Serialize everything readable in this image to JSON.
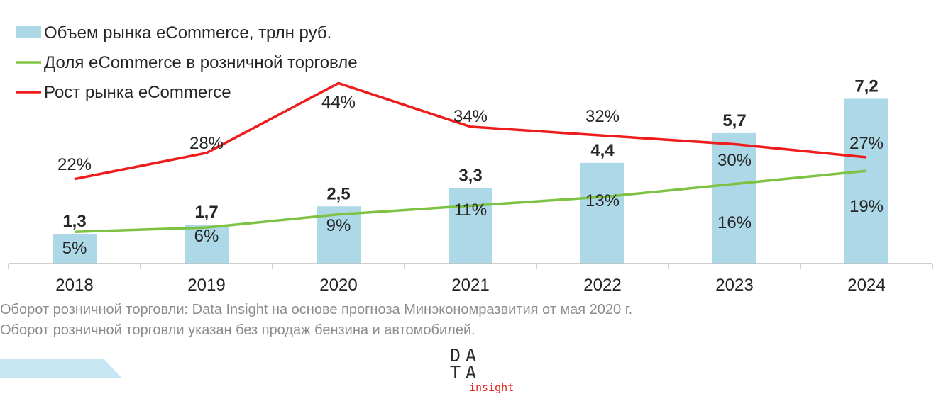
{
  "chart_data": {
    "type": "bar",
    "categories": [
      "2018",
      "2019",
      "2020",
      "2021",
      "2022",
      "2023",
      "2024"
    ],
    "series": [
      {
        "name": "Объем рынка eCommerce, трлн руб.",
        "type": "bar",
        "values": [
          1.3,
          1.7,
          2.5,
          3.3,
          4.4,
          5.7,
          7.2
        ],
        "labels": [
          "1,3",
          "1,7",
          "2,5",
          "3,3",
          "4,4",
          "5,7",
          "7,2"
        ],
        "color": "#add8e8"
      },
      {
        "name": "Доля eCommerce в розничной торговле",
        "type": "line",
        "values": [
          5,
          6,
          9,
          11,
          13,
          16,
          19
        ],
        "labels": [
          "5%",
          "6%",
          "9%",
          "11%",
          "13%",
          "16%",
          "19%"
        ],
        "color": "#7dc242"
      },
      {
        "name": "Рост рынка eCommerce",
        "type": "line",
        "values": [
          22,
          28,
          44,
          34,
          32,
          30,
          27
        ],
        "labels": [
          "22%",
          "28%",
          "44%",
          "34%",
          "32%",
          "30%",
          "27%"
        ],
        "color": "#ee1c1c"
      }
    ],
    "title": "",
    "xlabel": "",
    "ylabel": "",
    "legend": "top-left",
    "grid": false
  },
  "notes": [
    "Оборот розничной торговли: Data Insight на основе прогноза Минэкономразвития от мая 2020 г.",
    "Оборот розничной торговли указан без продаж бензина и автомобилей."
  ],
  "logo": {
    "row1": "DA",
    "row2": "TA",
    "sub": "insight"
  },
  "colors": {
    "axis": "#bfbfbf",
    "text": "#262626",
    "note": "#8c8c8c"
  }
}
